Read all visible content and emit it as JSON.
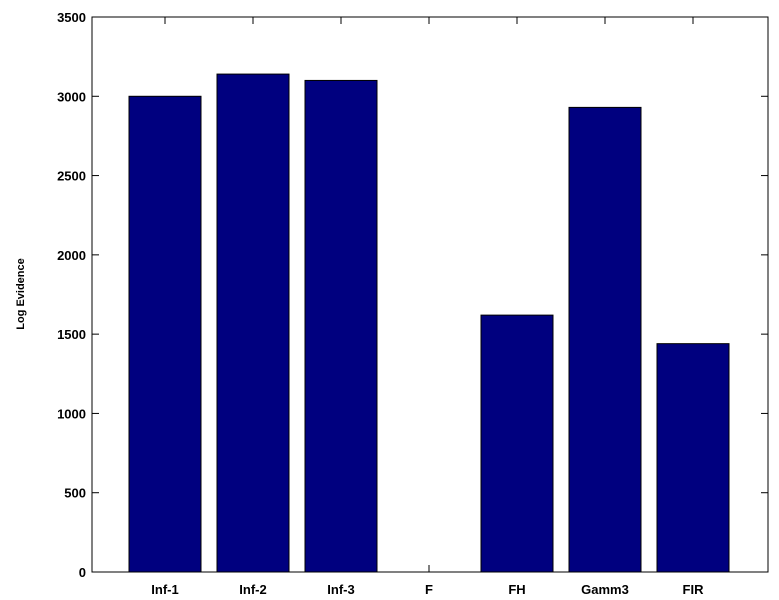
{
  "chart_data": {
    "type": "bar",
    "categories": [
      "Inf-1",
      "Inf-2",
      "Inf-3",
      "F",
      "FH",
      "Gamm3",
      "FIR"
    ],
    "values": [
      3000,
      3140,
      3100,
      0,
      1620,
      2930,
      1440
    ],
    "title": "",
    "xlabel": "",
    "ylabel": "Log Evidence",
    "ylim": [
      0,
      3500
    ],
    "yticks": [
      0,
      500,
      1000,
      1500,
      2000,
      2500,
      3000,
      3500
    ],
    "grid": false,
    "bar_color": "#00007f"
  }
}
